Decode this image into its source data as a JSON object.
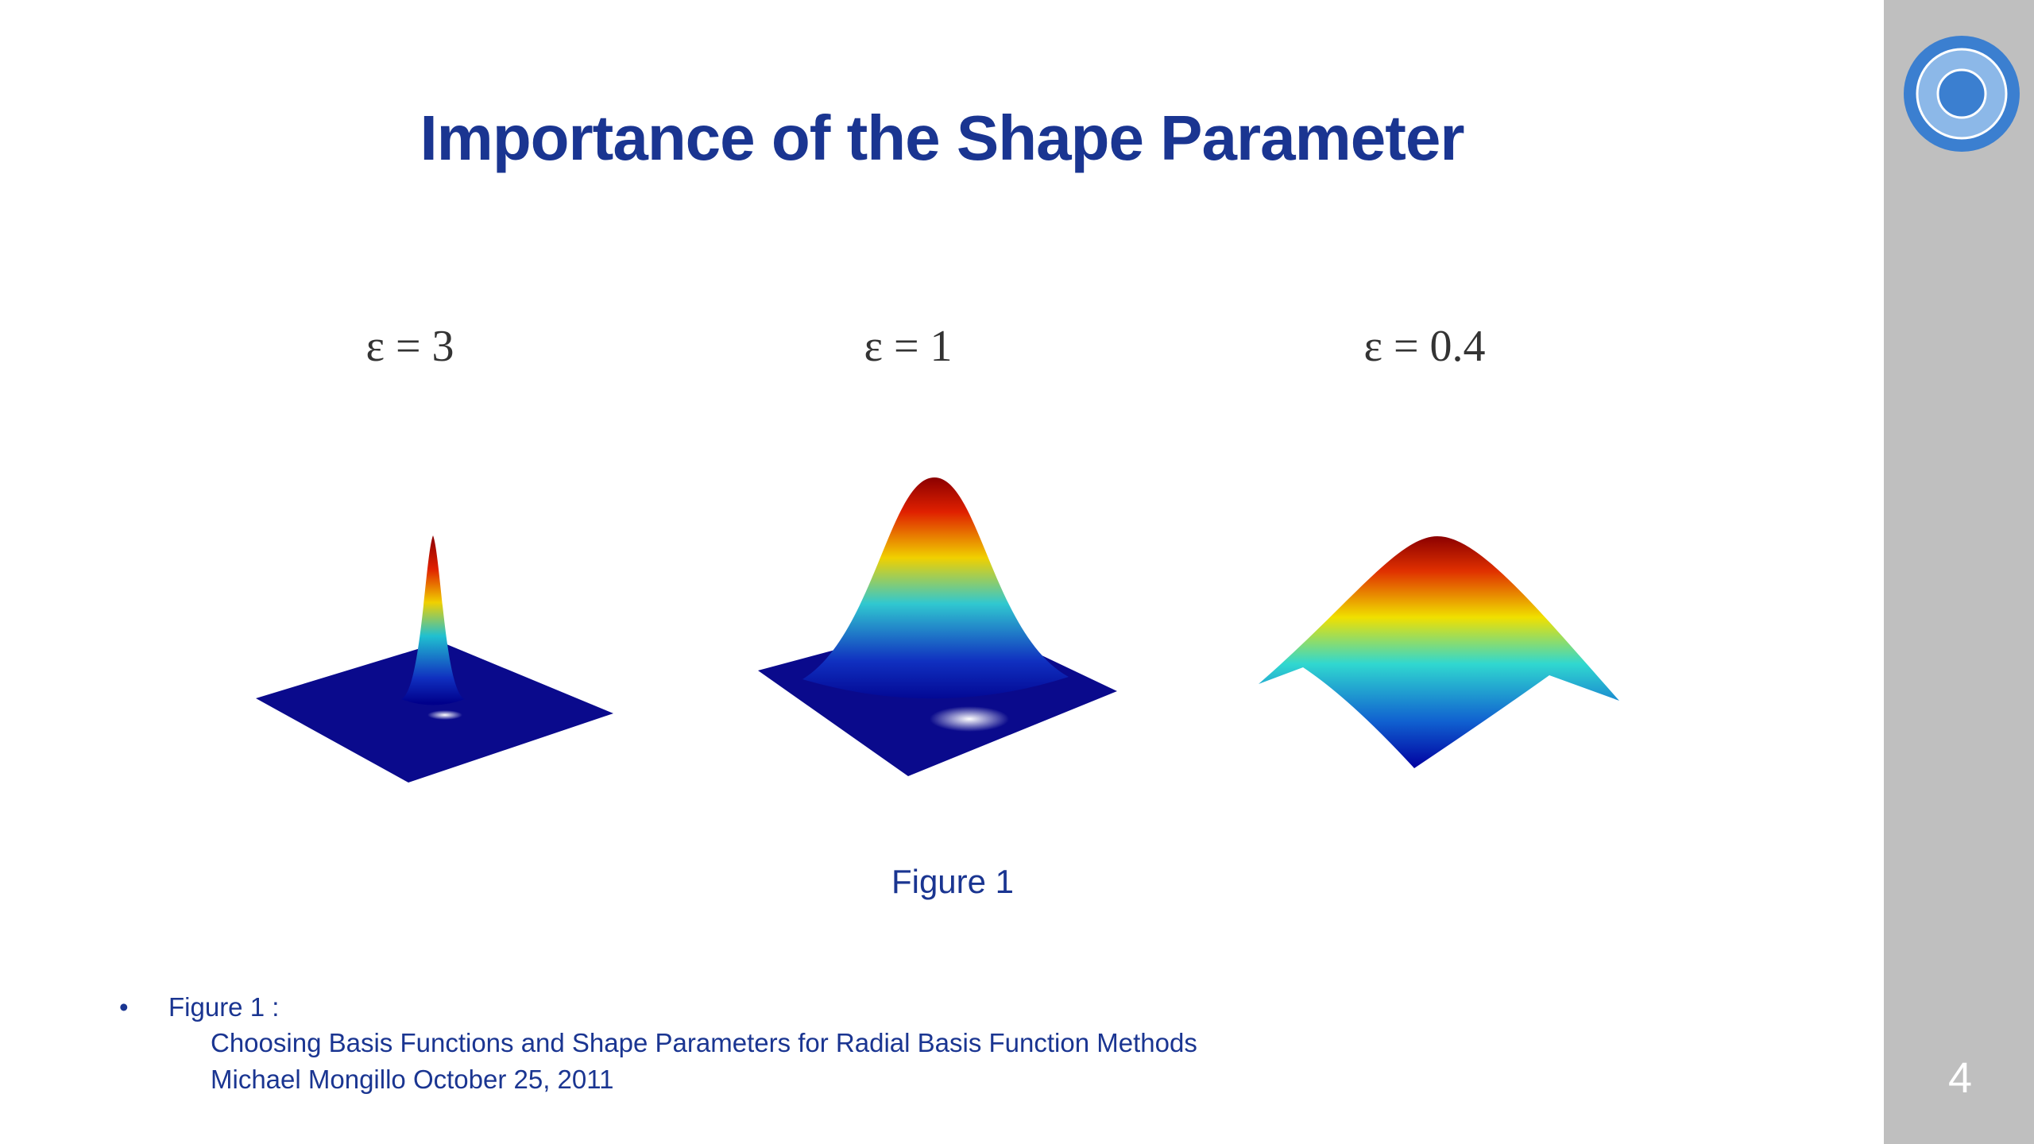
{
  "title": "Importance of the Shape Parameter",
  "panels": [
    {
      "label": "ε = 3"
    },
    {
      "label": "ε = 1"
    },
    {
      "label": "ε = 0.4"
    }
  ],
  "caption": "Figure 1",
  "notes": {
    "bullet": "Figure 1 :",
    "lines": [
      "Choosing Basis Functions and Shape Parameters for Radial Basis Function Methods",
      "Michael Mongillo October 25, 2011"
    ]
  },
  "page_number": "4"
}
